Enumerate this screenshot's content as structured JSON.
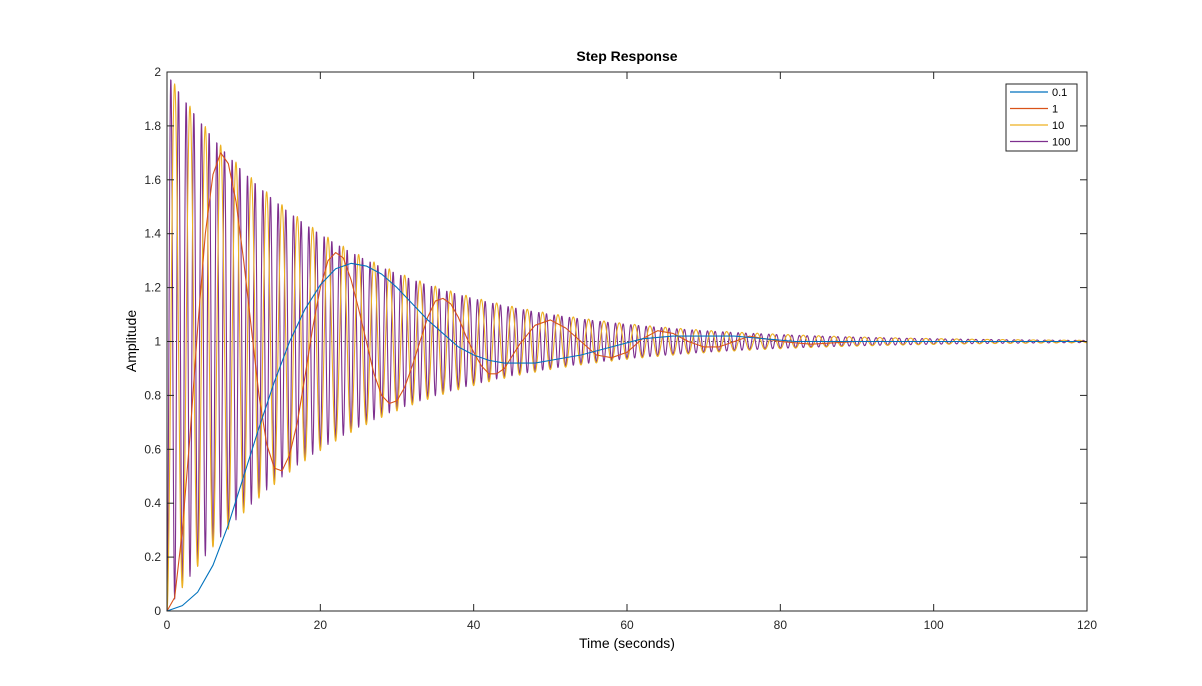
{
  "chart_data": {
    "type": "line",
    "title": "Step Response",
    "xlabel": "Time (seconds)",
    "ylabel": "Amplitude",
    "xlim": [
      0,
      120
    ],
    "ylim": [
      0,
      2
    ],
    "x_ticks": [
      "0",
      "20",
      "40",
      "60",
      "80",
      "100",
      "120"
    ],
    "y_ticks": [
      "0",
      "0.2",
      "0.4",
      "0.6",
      "0.8",
      "1",
      "1.2",
      "1.4",
      "1.6",
      "1.8",
      "2"
    ],
    "grid": false,
    "legend_position": "top-right",
    "reference_line": 1,
    "series": [
      {
        "name": "0.1",
        "color": "#0072BD",
        "points": [
          [
            0,
            0
          ],
          [
            2,
            0.02
          ],
          [
            4,
            0.07
          ],
          [
            6,
            0.17
          ],
          [
            8,
            0.32
          ],
          [
            10,
            0.5
          ],
          [
            12,
            0.68
          ],
          [
            14,
            0.85
          ],
          [
            16,
            1.0
          ],
          [
            18,
            1.12
          ],
          [
            20,
            1.21
          ],
          [
            22,
            1.27
          ],
          [
            24,
            1.29
          ],
          [
            26,
            1.28
          ],
          [
            28,
            1.25
          ],
          [
            30,
            1.2
          ],
          [
            32,
            1.14
          ],
          [
            34,
            1.08
          ],
          [
            36,
            1.03
          ],
          [
            38,
            0.98
          ],
          [
            40,
            0.95
          ],
          [
            42,
            0.93
          ],
          [
            44,
            0.92
          ],
          [
            46,
            0.92
          ],
          [
            48,
            0.92
          ],
          [
            50,
            0.93
          ],
          [
            54,
            0.95
          ],
          [
            58,
            0.98
          ],
          [
            62,
            1.01
          ],
          [
            66,
            1.02
          ],
          [
            70,
            1.02
          ],
          [
            74,
            1.02
          ],
          [
            78,
            1.01
          ],
          [
            82,
            1.0
          ],
          [
            90,
            1.0
          ],
          [
            100,
            1.0
          ],
          [
            120,
            1.0
          ]
        ]
      },
      {
        "name": "1",
        "color": "#D95319",
        "points": [
          [
            0,
            0
          ],
          [
            1,
            0.05
          ],
          [
            2,
            0.3
          ],
          [
            3,
            0.65
          ],
          [
            4,
            1.05
          ],
          [
            5,
            1.4
          ],
          [
            6,
            1.62
          ],
          [
            7,
            1.7
          ],
          [
            8,
            1.66
          ],
          [
            9,
            1.52
          ],
          [
            10,
            1.3
          ],
          [
            11,
            1.05
          ],
          [
            12,
            0.8
          ],
          [
            13,
            0.62
          ],
          [
            14,
            0.53
          ],
          [
            15,
            0.52
          ],
          [
            16,
            0.58
          ],
          [
            17,
            0.7
          ],
          [
            18,
            0.87
          ],
          [
            19,
            1.05
          ],
          [
            20,
            1.2
          ],
          [
            21,
            1.3
          ],
          [
            22,
            1.33
          ],
          [
            23,
            1.31
          ],
          [
            24,
            1.23
          ],
          [
            25,
            1.12
          ],
          [
            26,
            1.0
          ],
          [
            27,
            0.88
          ],
          [
            28,
            0.8
          ],
          [
            29,
            0.77
          ],
          [
            30,
            0.78
          ],
          [
            31,
            0.83
          ],
          [
            32,
            0.91
          ],
          [
            33,
            1.0
          ],
          [
            34,
            1.09
          ],
          [
            35,
            1.15
          ],
          [
            36,
            1.16
          ],
          [
            37,
            1.14
          ],
          [
            38,
            1.09
          ],
          [
            39,
            1.02
          ],
          [
            40,
            0.96
          ],
          [
            41,
            0.91
          ],
          [
            42,
            0.88
          ],
          [
            43,
            0.88
          ],
          [
            44,
            0.9
          ],
          [
            46,
            0.99
          ],
          [
            48,
            1.06
          ],
          [
            50,
            1.08
          ],
          [
            52,
            1.05
          ],
          [
            54,
            1.0
          ],
          [
            56,
            0.95
          ],
          [
            58,
            0.94
          ],
          [
            60,
            0.96
          ],
          [
            62,
            1.01
          ],
          [
            64,
            1.04
          ],
          [
            66,
            1.03
          ],
          [
            68,
            1.0
          ],
          [
            70,
            0.98
          ],
          [
            72,
            0.98
          ],
          [
            74,
            1.0
          ],
          [
            76,
            1.02
          ],
          [
            78,
            1.01
          ],
          [
            80,
            1.0
          ],
          [
            84,
            0.99
          ],
          [
            90,
            1.0
          ],
          [
            100,
            1.0
          ],
          [
            120,
            1.0
          ]
        ]
      },
      {
        "name": "10",
        "color": "#EDB120",
        "type": "damped",
        "period": 2.0,
        "initial_amplitude": 0.92,
        "t_end": 120
      },
      {
        "name": "100",
        "color": "#7E2F8E",
        "type": "damped",
        "period": 1.0,
        "initial_amplitude": 0.98,
        "t_end": 120
      }
    ]
  }
}
